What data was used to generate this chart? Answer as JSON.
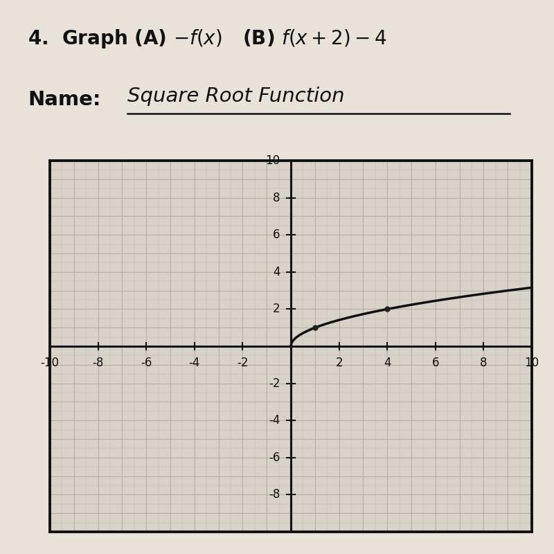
{
  "background_color": "#d8d2c8",
  "paper_color": "#e8e2d8",
  "grid_minor_color": "#c0b8a8",
  "grid_major_color": "#b0a898",
  "axis_color": "#111111",
  "curve_color": "#111111",
  "dot_color": "#222222",
  "xlim": [
    -10,
    10
  ],
  "ylim": [
    -10,
    10
  ],
  "xticks": [
    -10,
    -8,
    -6,
    -4,
    -2,
    2,
    4,
    6,
    8,
    10
  ],
  "yticks": [
    -8,
    -6,
    -4,
    -2,
    2,
    4,
    6,
    8,
    10
  ],
  "dot_points": [
    [
      1,
      1
    ],
    [
      4,
      2
    ]
  ],
  "title_fontsize": 20,
  "name_fontsize": 21,
  "tick_fontsize": 12
}
